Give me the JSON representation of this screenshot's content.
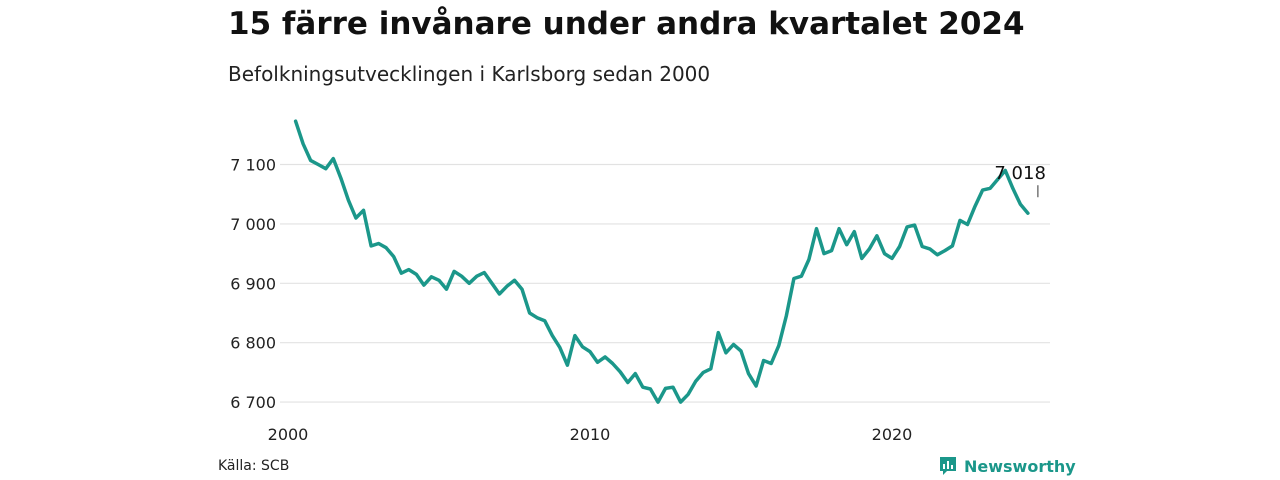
{
  "title": "15 färre invånare under andra kvartalet 2024",
  "subtitle": "Befolkningsutvecklingen i Karlsborg sedan 2000",
  "source": "Källa: SCB",
  "brand": "Newsworthy",
  "colors": {
    "line": "#1b978a",
    "brand": "#1b978a",
    "grid": "#e2e2e2"
  },
  "chart_data": {
    "type": "line",
    "title": "15 färre invånare under andra kvartalet 2024",
    "subtitle": "Befolkningsutvecklingen i Karlsborg sedan 2000",
    "xlabel": "",
    "ylabel": "",
    "xlim": [
      2000,
      2025
    ],
    "ylim": [
      6690,
      7175
    ],
    "y_ticks": [
      6700,
      6800,
      6900,
      7000,
      7100
    ],
    "y_tick_labels": [
      "6 700",
      "6 800",
      "6 900",
      "7 000",
      "7 100"
    ],
    "x_ticks": [
      2000,
      2010,
      2020
    ],
    "x_tick_labels": [
      "2000",
      "2010",
      "2020"
    ],
    "grid": true,
    "end_label": "7 018",
    "x": [
      2000.25,
      2000.5,
      2000.75,
      2001,
      2001.25,
      2001.5,
      2001.75,
      2002,
      2002.25,
      2002.5,
      2002.75,
      2003,
      2003.25,
      2003.5,
      2003.75,
      2004,
      2004.25,
      2004.5,
      2004.75,
      2005,
      2005.25,
      2005.5,
      2005.75,
      2006,
      2006.25,
      2006.5,
      2006.75,
      2007,
      2007.25,
      2007.5,
      2007.75,
      2008,
      2008.25,
      2008.5,
      2008.75,
      2009,
      2009.25,
      2009.5,
      2009.75,
      2010,
      2010.25,
      2010.5,
      2010.75,
      2011,
      2011.25,
      2011.5,
      2011.75,
      2012,
      2012.25,
      2012.5,
      2012.75,
      2013,
      2013.25,
      2013.5,
      2013.75,
      2014,
      2014.25,
      2014.5,
      2014.75,
      2015,
      2015.25,
      2015.5,
      2015.75,
      2016,
      2016.25,
      2016.5,
      2016.75,
      2017,
      2017.25,
      2017.5,
      2017.75,
      2018,
      2018.25,
      2018.5,
      2018.75,
      2019,
      2019.25,
      2019.5,
      2019.75,
      2020,
      2020.25,
      2020.5,
      2020.75,
      2021,
      2021.25,
      2021.5,
      2021.75,
      2022,
      2022.25,
      2022.5,
      2022.75,
      2023,
      2023.25,
      2023.5,
      2023.75,
      2024,
      2024.25,
      2024.5
    ],
    "series": [
      {
        "values": [
          7173,
          7135,
          7107,
          7100,
          7093,
          7110,
          7077,
          7040,
          7010,
          7023,
          6963,
          6967,
          6960,
          6945,
          6917,
          6923,
          6915,
          6897,
          6911,
          6905,
          6890,
          6920,
          6912,
          6900,
          6912,
          6918,
          6900,
          6882,
          6895,
          6905,
          6890,
          6850,
          6842,
          6837,
          6812,
          6792,
          6762,
          6812,
          6793,
          6785,
          6767,
          6776,
          6765,
          6751,
          6733,
          6748,
          6725,
          6722,
          6700,
          6723,
          6725,
          6700,
          6713,
          6735,
          6750,
          6756,
          6817,
          6783,
          6797,
          6786,
          6748,
          6727,
          6770,
          6765,
          6795,
          6845,
          6908,
          6912,
          6940,
          6992,
          6950,
          6955,
          6992,
          6965,
          6987,
          6942,
          6958,
          6980,
          6950,
          6942,
          6962,
          6995,
          6998,
          6962,
          6958,
          6948,
          6955,
          6963,
          7006,
          6999,
          7030,
          7057,
          7060,
          7075,
          7090,
          7060,
          7033,
          7018
        ]
      }
    ]
  }
}
